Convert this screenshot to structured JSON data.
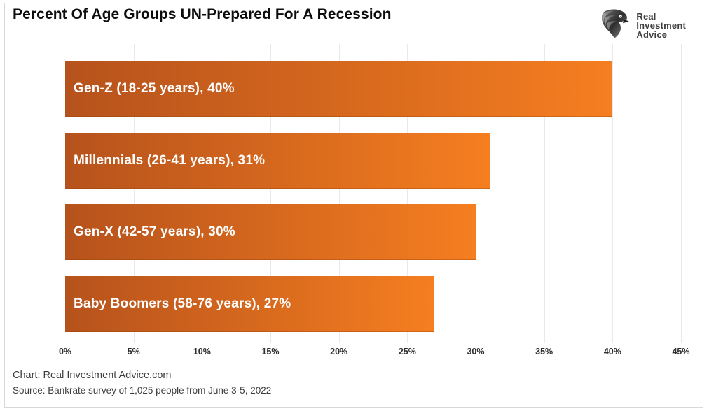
{
  "header": {
    "title": "Percent Of Age Groups UN-Prepared For A Recession",
    "logo": {
      "icon": "eagle-head-icon",
      "line1": "Real",
      "line2": "Investment",
      "line3": "Advice"
    }
  },
  "chart_data": {
    "type": "bar",
    "orientation": "horizontal",
    "title": "Percent Of Age Groups UN-Prepared For A Recession",
    "categories": [
      "Gen-Z (18-25 years)",
      "Millennials (26-41 years)",
      "Gen-X (42-57 years)",
      "Baby Boomers (58-76 years)"
    ],
    "values": [
      40,
      31,
      30,
      27
    ],
    "bar_labels": [
      "Gen-Z (18-25 years), 40%",
      "Millennials (26-41 years), 31%",
      "Gen-X (42-57 years), 30%",
      "Baby Boomers (58-76 years), 27%"
    ],
    "xlabel": "",
    "ylabel": "",
    "xlim": [
      0,
      45
    ],
    "xtick_step": 5,
    "xtick_labels": [
      "0%",
      "5%",
      "10%",
      "15%",
      "20%",
      "25%",
      "30%",
      "35%",
      "40%",
      "45%"
    ],
    "grid": true,
    "legend": false,
    "bar_gradient_start": "#b6521c",
    "bar_gradient_end": "#f57e20",
    "bar_label_color": "#ffffff",
    "gridline_color": "#e9e9e9"
  },
  "footer": {
    "chart_credit": "Chart: Real Investment Advice.com",
    "source": "Source: Bankrate survey of 1,025 people from June 3-5, 2022"
  }
}
